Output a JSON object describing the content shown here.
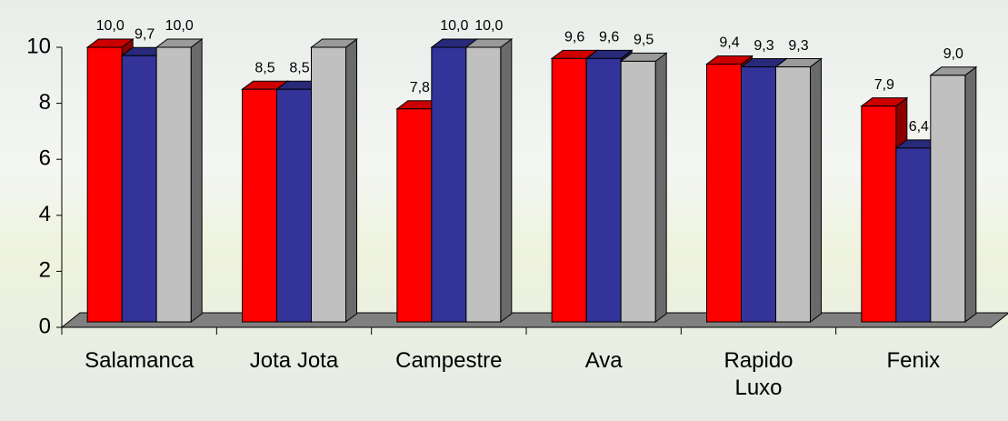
{
  "chart_data": {
    "type": "bar3d",
    "categories": [
      "Salamanca",
      "Jota Jota",
      "Campestre",
      "Ava",
      "Rapido\nLuxo",
      "Fenix"
    ],
    "series": [
      {
        "color": "#ff0000",
        "values": [
          10.0,
          8.5,
          7.8,
          9.6,
          9.4,
          7.9
        ],
        "value_labels": [
          "10,0",
          "8,5",
          "7,8",
          "9,6",
          "9,4",
          "7,9"
        ]
      },
      {
        "color": "#333399",
        "values": [
          9.7,
          8.5,
          10.0,
          9.6,
          9.3,
          6.4
        ],
        "value_labels": [
          "9,7",
          "8,5",
          "10,0",
          "9,6",
          "9,3",
          "6,4"
        ]
      },
      {
        "color": "#c0c0c0",
        "values": [
          10.0,
          10.0,
          10.0,
          9.5,
          9.3,
          9.0
        ],
        "value_labels": [
          "10,0",
          null,
          "10,0",
          "9,5",
          "9,3",
          "9,0"
        ]
      }
    ],
    "ylim": [
      0,
      10
    ],
    "yticks": [
      0,
      2,
      4,
      6,
      8,
      10
    ]
  }
}
